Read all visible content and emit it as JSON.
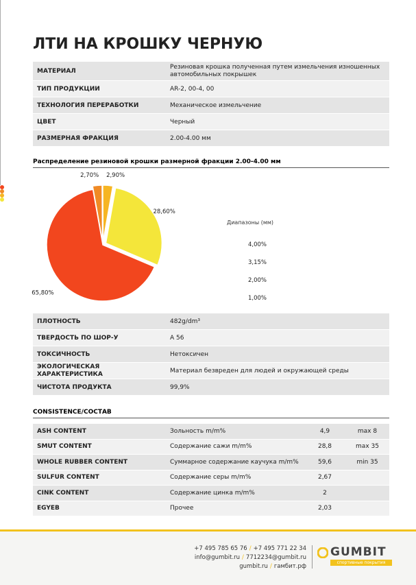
{
  "header": {
    "title": "ЛТИ НА КРОШКУ ЧЕРНУЮ"
  },
  "table1": {
    "rows": [
      [
        "МАТЕРИАЛ",
        "Резиновая крошка полученная путем измельчения изношенных автомобильных покрышек"
      ],
      [
        "ТИП ПРОДУКЦИИ",
        "AR-2, 00-4, 00"
      ],
      [
        "ТЕХНОЛОГИЯ ПЕРЕРАБОТКИ",
        "Механическое измельчение"
      ],
      [
        "ЦВЕТ",
        "Черный"
      ],
      [
        "РАЗМЕРНАЯ ФРАКЦИЯ",
        "2.00-4.00 мм"
      ]
    ]
  },
  "chart_data": {
    "type": "pie",
    "title": "Распределение резиновой крошки размерной фракции 2.00-4.00 мм",
    "legend_title": "Диапазоны (мм)",
    "categories": [
      "4,00%",
      "3,15%",
      "2,00%",
      "1,00%"
    ],
    "values": [
      65.8,
      2.7,
      2.9,
      28.6
    ],
    "value_labels": [
      "65,80%",
      "2,70%",
      "2,90%",
      "28,60%"
    ],
    "colors": [
      "#f2461e",
      "#f08a25",
      "#f6b523",
      "#f4e63a"
    ]
  },
  "table2": {
    "rows": [
      [
        "ПЛОТНОСТЬ",
        "482g/dm³"
      ],
      [
        "ТВЕРДОСТЬ ПО ШОР-У",
        "A 56"
      ],
      [
        "ТОКСИЧНОСТЬ",
        "Нетоксичен"
      ],
      [
        "ЭКОЛОГИЧЕСКАЯ ХАРАКТЕРИСТИКА",
        "Материал безвреден для людей и окружающей среды"
      ],
      [
        "ЧИСТОТА ПРОДУКТА",
        "99,9%"
      ]
    ]
  },
  "consistence": {
    "title": "CONSISTENCE/СОСТАВ",
    "rows": [
      [
        "ASH CONTENT",
        "Зольность m/m%",
        "4,9",
        "max 8"
      ],
      [
        "SMUT CONTENT",
        "Содержание сажи m/m%",
        "28,8",
        "max 35"
      ],
      [
        "WHOLE RUBBER CONTENT",
        "Суммарное содержание каучука m/m%",
        "59,6",
        "min 35"
      ],
      [
        "SULFUR CONTENT",
        "Содержание серы m/m%",
        "2,67",
        null
      ],
      [
        "CINK CONTENT",
        "Содержание цинка m/m%",
        "2",
        null
      ],
      [
        "EGYEB",
        "Прочее",
        "2,03",
        null
      ]
    ]
  },
  "footer": {
    "separator": "/",
    "phones": [
      "+7 495 785 65 76",
      "+7 495 771 22 34"
    ],
    "emails": [
      "info@gumbit.ru",
      "7712234@gumbit.ru"
    ],
    "sites": [
      "gumbit.ru",
      "гамбит.рф"
    ],
    "logo": "GUMBIT",
    "tagline": "спортивные покрытия"
  }
}
